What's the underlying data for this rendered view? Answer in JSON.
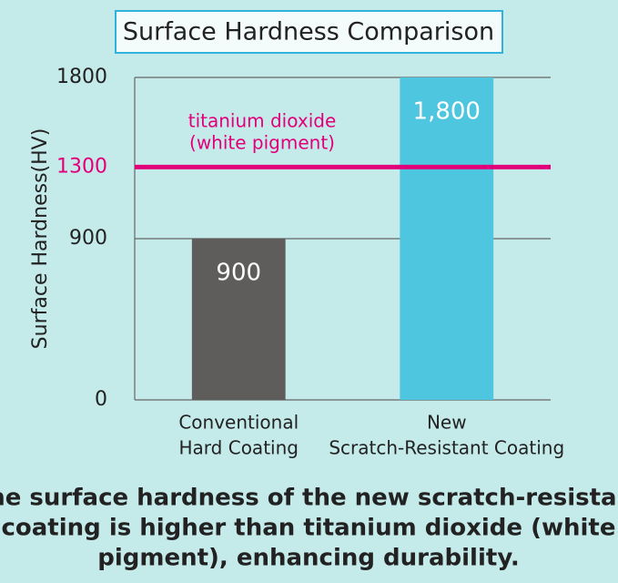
{
  "chart_data": {
    "type": "bar",
    "title": "Surface Hardness Comparison",
    "y_label": "Surface Hardness(HV)",
    "categories": [
      [
        "Conventional",
        "Hard Coating"
      ],
      [
        "New",
        "Scratch-Resistant Coating"
      ]
    ],
    "values": [
      900,
      1800
    ],
    "value_labels": [
      "900",
      "1,800"
    ],
    "colors": [
      "#5f5c5c",
      "#4ec6e0"
    ],
    "ylim": [
      0,
      1800
    ],
    "yticks": [
      0,
      900,
      1300,
      1800
    ],
    "reference_line": {
      "value": 1300,
      "label": [
        "titanium dioxide",
        "(white pigment)"
      ],
      "color": "#e2007a"
    },
    "caption": [
      "The surface hardness of the new scratch-resistant",
      "coating is higher than titanium dioxide (white",
      "pigment), enhancing durability."
    ]
  }
}
